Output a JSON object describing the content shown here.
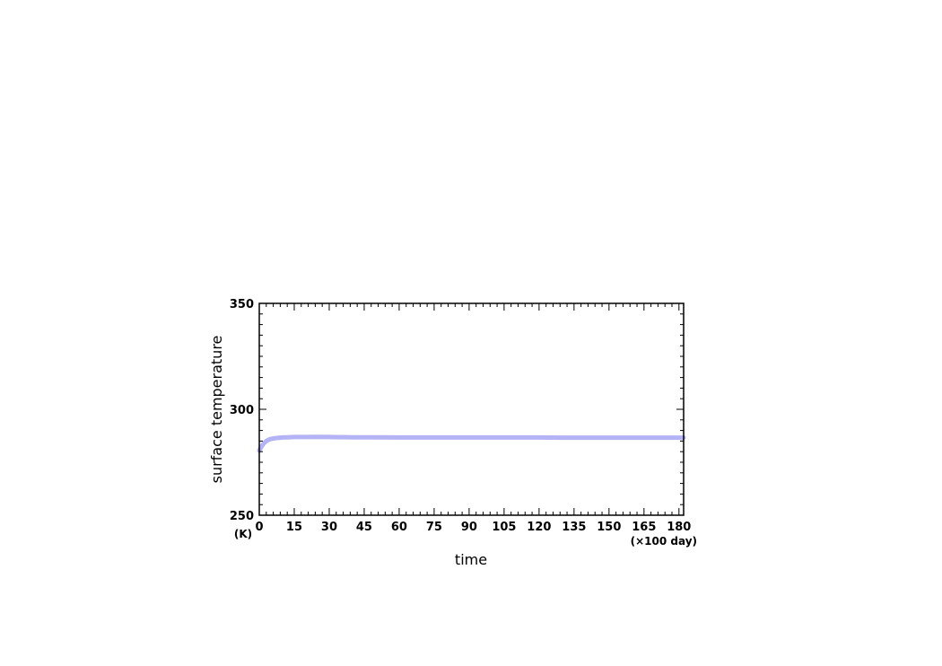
{
  "chart_data": {
    "type": "line",
    "title": "",
    "xlabel": "time",
    "ylabel": "surface temperature",
    "x_unit": "(×100 day)",
    "y_unit": "(K)",
    "xlim": [
      0,
      182
    ],
    "ylim": [
      250,
      350
    ],
    "xticks": [
      0,
      15,
      30,
      45,
      60,
      75,
      90,
      105,
      120,
      135,
      150,
      165,
      180
    ],
    "yticks": [
      250,
      300,
      350
    ],
    "grid": false,
    "series": [
      {
        "color": "#b3b3f5",
        "x": [
          0,
          1,
          2,
          3,
          4,
          5,
          6,
          7,
          8,
          10,
          12,
          15,
          20,
          25,
          30,
          40,
          50,
          60,
          70,
          80,
          90,
          100,
          110,
          120,
          130,
          140,
          150,
          160,
          170,
          182
        ],
        "y": [
          280.5,
          282.5,
          284,
          285,
          285.6,
          286,
          286.2,
          286.4,
          286.5,
          286.7,
          286.8,
          286.9,
          286.9,
          287,
          286.9,
          286.8,
          286.8,
          286.7,
          286.7,
          286.7,
          286.7,
          286.7,
          286.7,
          286.7,
          286.6,
          286.6,
          286.6,
          286.6,
          286.6,
          286.6
        ]
      }
    ]
  }
}
